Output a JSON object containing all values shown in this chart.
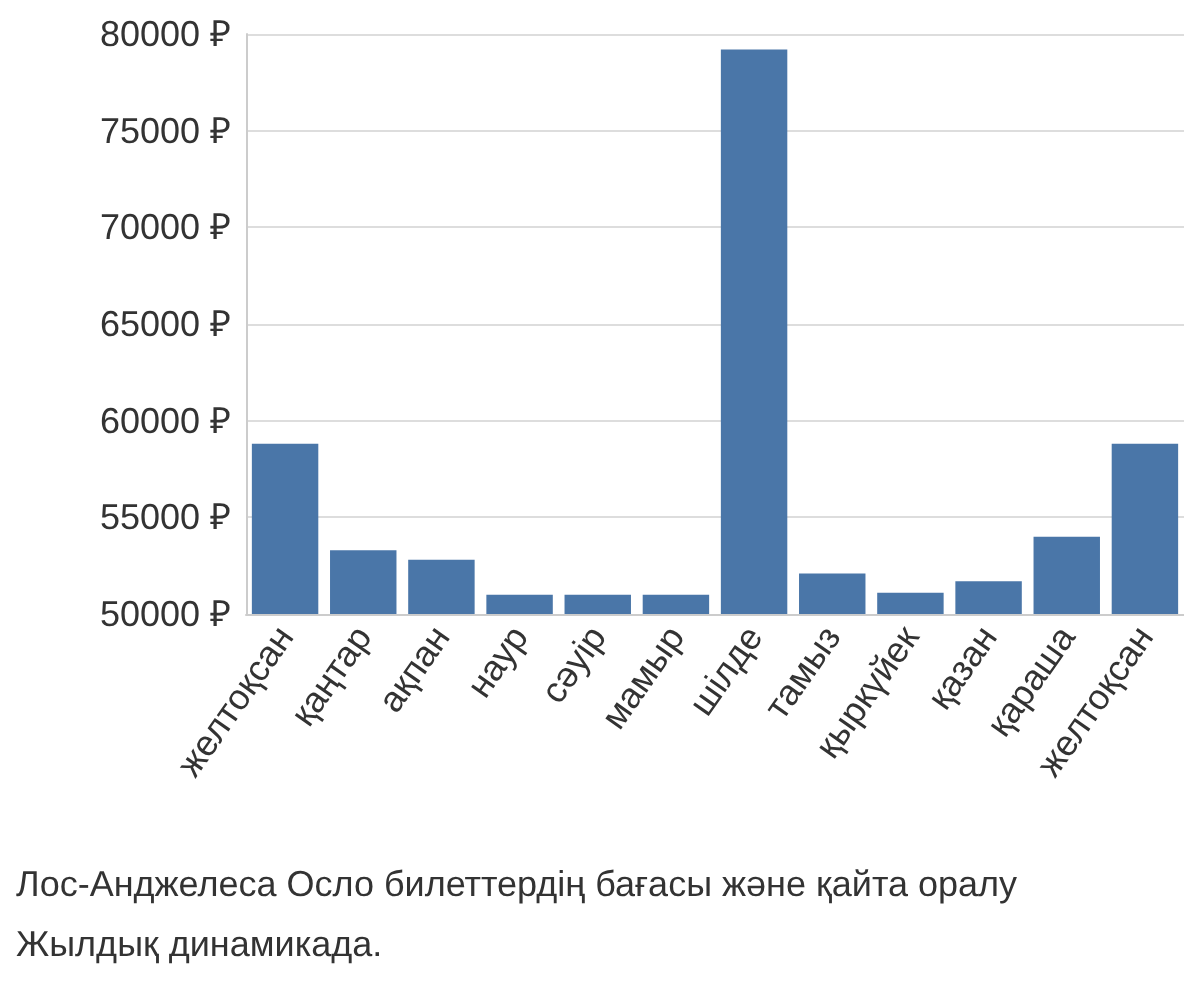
{
  "chart_data": {
    "type": "bar",
    "categories": [
      "желтоқсан",
      "қаңтар",
      "ақпан",
      "наур",
      "сәуір",
      "мамыр",
      "шілде",
      "тамыз",
      "қыркүйек",
      "қазан",
      "қараша",
      "желтоқсан"
    ],
    "values": [
      58800,
      53300,
      52800,
      51000,
      51000,
      51000,
      79200,
      52100,
      51100,
      51700,
      54000,
      58800
    ],
    "color": "#4a76a8",
    "ylim": [
      50000,
      80000
    ],
    "yticks": [
      {
        "value": 50000,
        "label": "50000 ₽"
      },
      {
        "value": 55000,
        "label": "55000 ₽"
      },
      {
        "value": 60000,
        "label": "60000 ₽"
      },
      {
        "value": 65000,
        "label": "65000 ₽"
      },
      {
        "value": 70000,
        "label": "70000 ₽"
      },
      {
        "value": 75000,
        "label": "75000 ₽"
      },
      {
        "value": 80000,
        "label": "80000 ₽"
      }
    ],
    "grid": "y",
    "annotations": [
      "Лос-Анджелеса Осло билеттердің бағасы және қайта оралу",
      "Жылдық динамикада."
    ]
  }
}
